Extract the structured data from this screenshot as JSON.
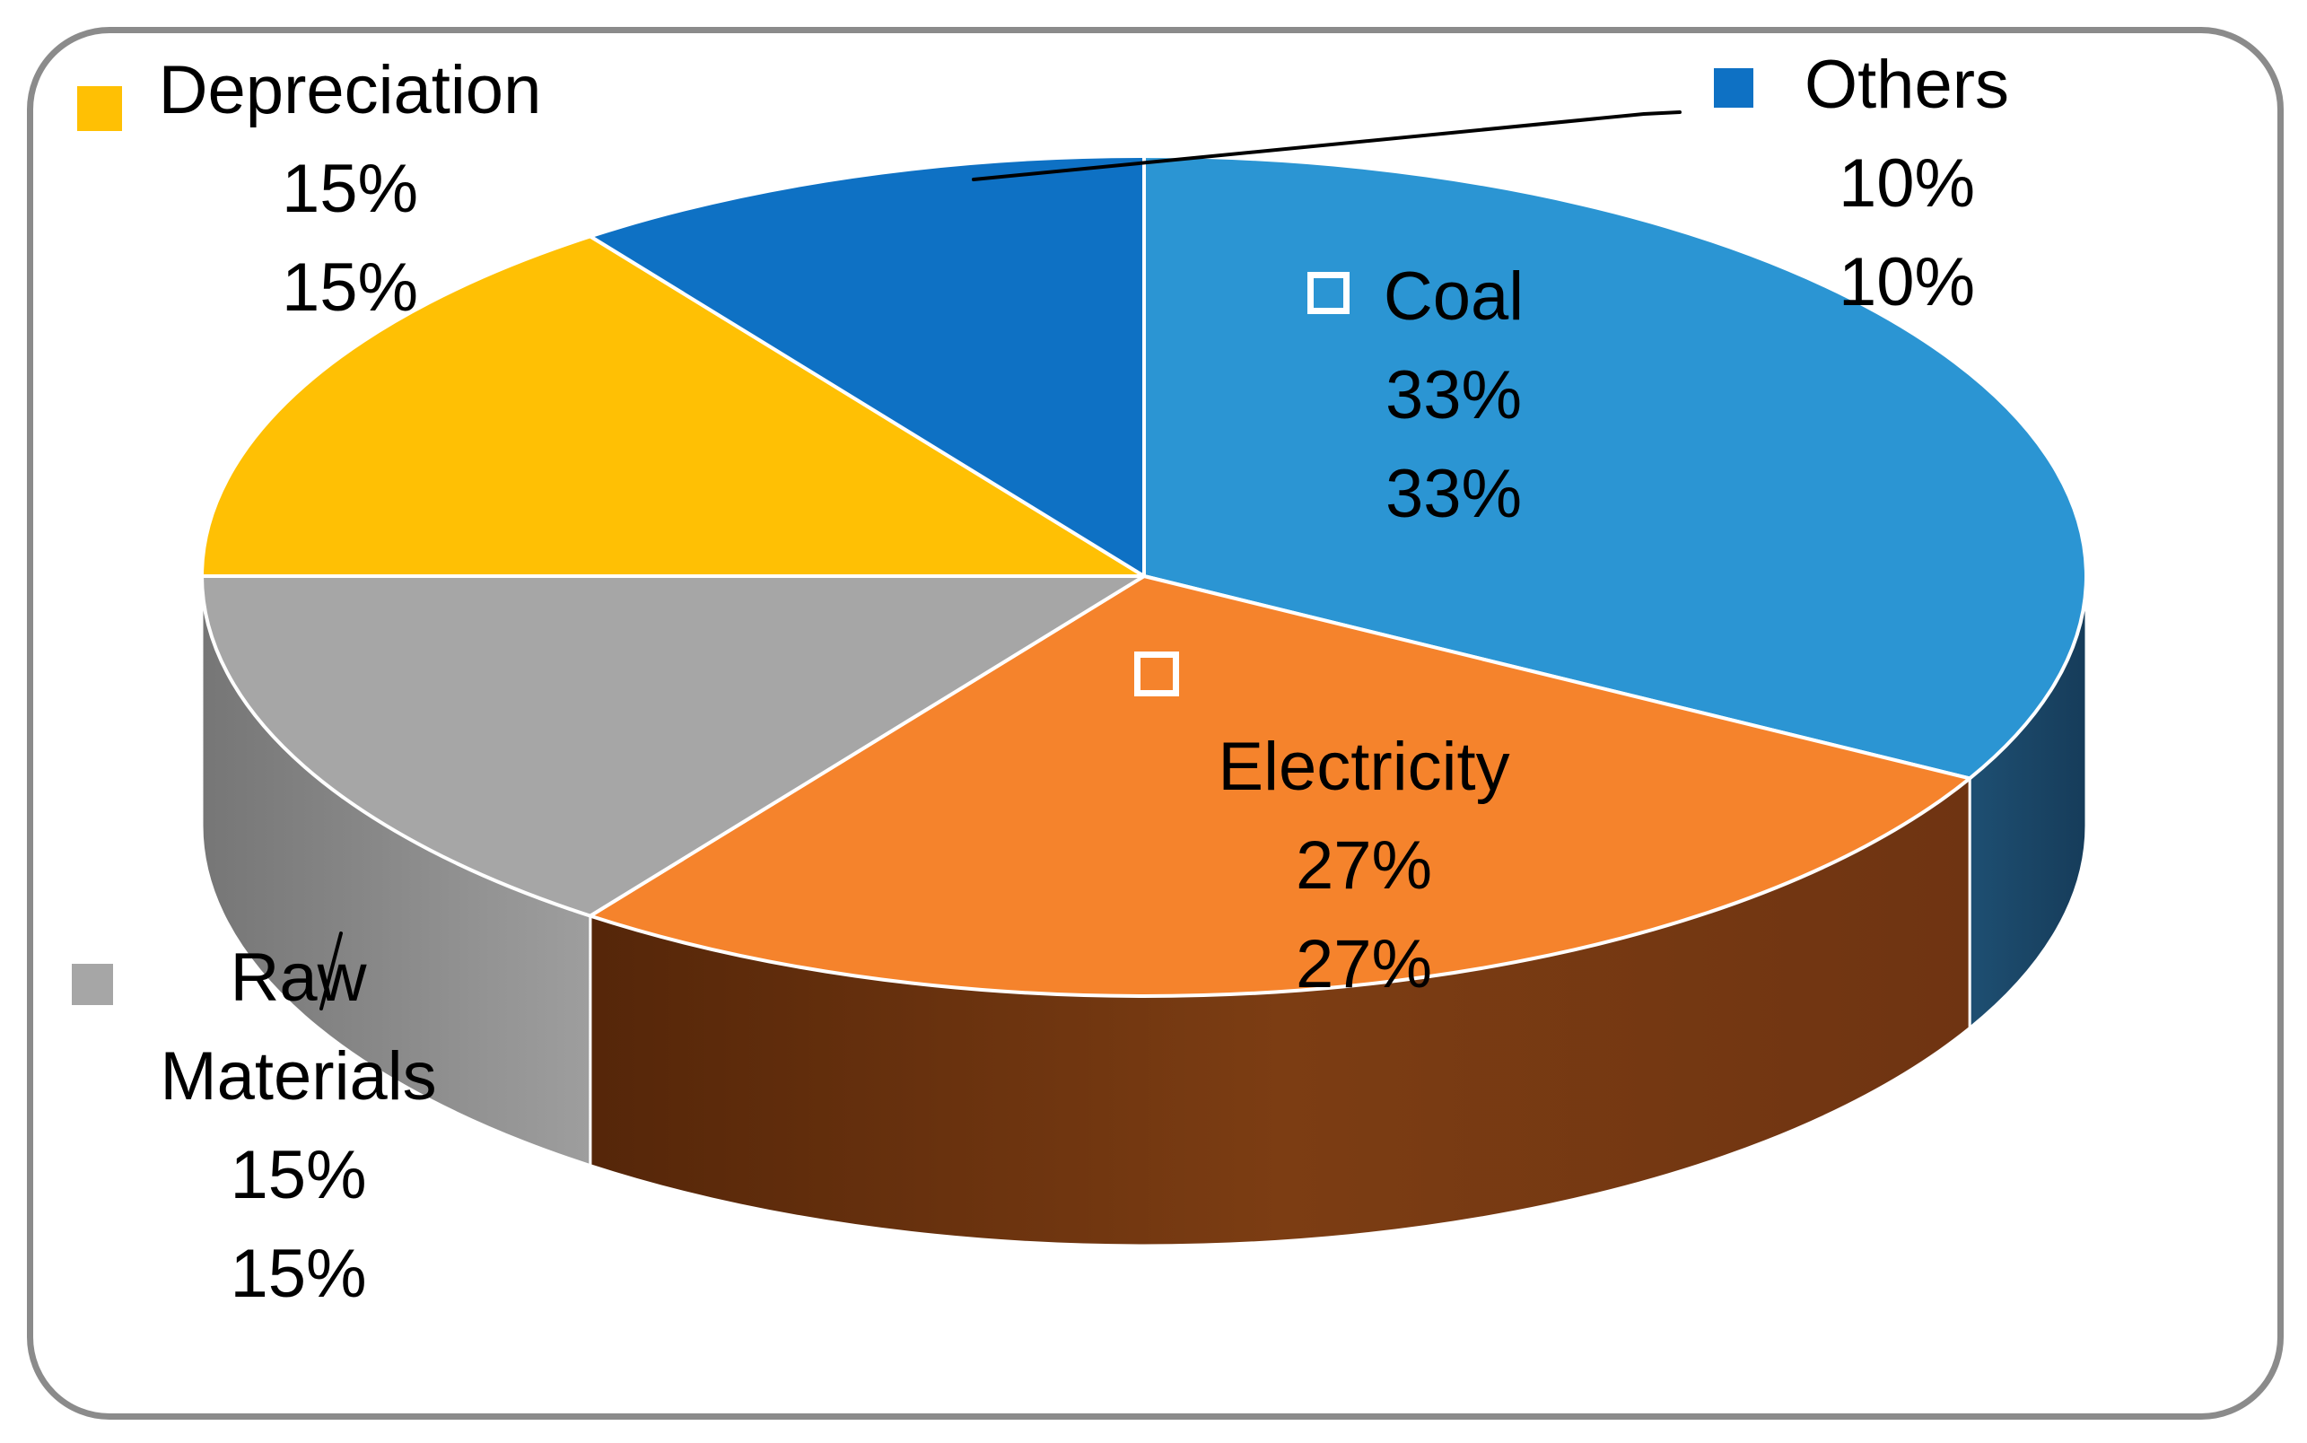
{
  "chart_data": {
    "type": "pie",
    "style": "3d",
    "title": "",
    "unit": "%",
    "start_angle_deg": 90,
    "direction": "clockwise",
    "categories": [
      "Coal",
      "Electricity",
      "Raw Materials",
      "Depreciation",
      "Others"
    ],
    "values": [
      33,
      27,
      15,
      15,
      10
    ],
    "slices": [
      {
        "label": "Coal",
        "value": 33,
        "pct_label": "33%",
        "color": "#2B95D3",
        "side_stops": [
          "#1E4F72",
          "#163C5A"
        ],
        "label_placement": "inside"
      },
      {
        "label": "Electricity",
        "value": 27,
        "pct_label": "27%",
        "color": "#F5832C",
        "side_stops": [
          "#552609",
          "#7C3D13",
          "#6F3412"
        ],
        "label_placement": "inside"
      },
      {
        "label": "Raw Materials",
        "value": 15,
        "pct_label": "15%",
        "color": "#A6A6A6",
        "side_stops": [
          "#767676",
          "#9E9E9E"
        ],
        "label_placement": "outside"
      },
      {
        "label": "Depreciation",
        "value": 15,
        "pct_label": "15%",
        "color": "#FFC004",
        "label_placement": "outside"
      },
      {
        "label": "Others",
        "value": 10,
        "pct_label": "10%",
        "color": "#0E71C4",
        "label_placement": "outside"
      }
    ],
    "legend_position": "none",
    "grid": false,
    "background": "#FFFFFF",
    "border_color": "#8B8B8B",
    "slice_edge_color": "#FFFFFF",
    "label_marker_outline_color": "#FFFFFF",
    "leader_line_color": "#000000"
  },
  "labels": {
    "depreciation": [
      "Depreciation",
      "15%",
      "15%"
    ],
    "others": [
      "Others",
      "10%",
      "10%"
    ],
    "coal": [
      "Coal",
      "33%",
      "33%"
    ],
    "electricity": [
      "Electricity",
      "27%",
      "27%"
    ],
    "raw_materials": [
      "Raw",
      "Materials",
      "15%",
      "15%"
    ]
  }
}
